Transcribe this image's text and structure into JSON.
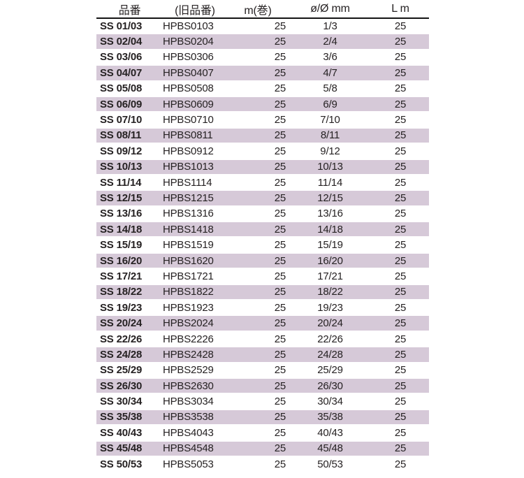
{
  "table": {
    "colors": {
      "shade": "#d6c9d8",
      "text": "#262223",
      "header_rule": "#141414",
      "background": "#ffffff"
    },
    "headers": [
      "品番",
      "(旧品番)",
      "m(巻)",
      "ø/Ø mm",
      "L m"
    ],
    "rows": [
      {
        "part": "SS 01/03",
        "old": "HPBS0103",
        "m": "25",
        "dia": "1/3",
        "l": "25"
      },
      {
        "part": "SS 02/04",
        "old": "HPBS0204",
        "m": "25",
        "dia": "2/4",
        "l": "25"
      },
      {
        "part": "SS 03/06",
        "old": "HPBS0306",
        "m": "25",
        "dia": "3/6",
        "l": "25"
      },
      {
        "part": "SS 04/07",
        "old": "HPBS0407",
        "m": "25",
        "dia": "4/7",
        "l": "25"
      },
      {
        "part": "SS 05/08",
        "old": "HPBS0508",
        "m": "25",
        "dia": "5/8",
        "l": "25"
      },
      {
        "part": "SS 06/09",
        "old": "HPBS0609",
        "m": "25",
        "dia": "6/9",
        "l": "25"
      },
      {
        "part": "SS 07/10",
        "old": "HPBS0710",
        "m": "25",
        "dia": "7/10",
        "l": "25"
      },
      {
        "part": "SS 08/11",
        "old": "HPBS0811",
        "m": "25",
        "dia": "8/11",
        "l": "25"
      },
      {
        "part": "SS 09/12",
        "old": "HPBS0912",
        "m": "25",
        "dia": "9/12",
        "l": "25"
      },
      {
        "part": "SS 10/13",
        "old": "HPBS1013",
        "m": "25",
        "dia": "10/13",
        "l": "25"
      },
      {
        "part": "SS 11/14",
        "old": "HPBS1114",
        "m": "25",
        "dia": "11/14",
        "l": "25"
      },
      {
        "part": "SS 12/15",
        "old": "HPBS1215",
        "m": "25",
        "dia": "12/15",
        "l": "25"
      },
      {
        "part": "SS 13/16",
        "old": "HPBS1316",
        "m": "25",
        "dia": "13/16",
        "l": "25"
      },
      {
        "part": "SS 14/18",
        "old": "HPBS1418",
        "m": "25",
        "dia": "14/18",
        "l": "25"
      },
      {
        "part": "SS 15/19",
        "old": "HPBS1519",
        "m": "25",
        "dia": "15/19",
        "l": "25"
      },
      {
        "part": "SS 16/20",
        "old": "HPBS1620",
        "m": "25",
        "dia": "16/20",
        "l": "25"
      },
      {
        "part": "SS 17/21",
        "old": "HPBS1721",
        "m": "25",
        "dia": "17/21",
        "l": "25"
      },
      {
        "part": "SS 18/22",
        "old": "HPBS1822",
        "m": "25",
        "dia": "18/22",
        "l": "25"
      },
      {
        "part": "SS 19/23",
        "old": "HPBS1923",
        "m": "25",
        "dia": "19/23",
        "l": "25"
      },
      {
        "part": "SS 20/24",
        "old": "HPBS2024",
        "m": "25",
        "dia": "20/24",
        "l": "25"
      },
      {
        "part": "SS 22/26",
        "old": "HPBS2226",
        "m": "25",
        "dia": "22/26",
        "l": "25"
      },
      {
        "part": "SS 24/28",
        "old": "HPBS2428",
        "m": "25",
        "dia": "24/28",
        "l": "25"
      },
      {
        "part": "SS 25/29",
        "old": "HPBS2529",
        "m": "25",
        "dia": "25/29",
        "l": "25"
      },
      {
        "part": "SS 26/30",
        "old": "HPBS2630",
        "m": "25",
        "dia": "26/30",
        "l": "25"
      },
      {
        "part": "SS 30/34",
        "old": "HPBS3034",
        "m": "25",
        "dia": "30/34",
        "l": "25"
      },
      {
        "part": "SS 35/38",
        "old": "HPBS3538",
        "m": "25",
        "dia": "35/38",
        "l": "25"
      },
      {
        "part": "SS 40/43",
        "old": "HPBS4043",
        "m": "25",
        "dia": "40/43",
        "l": "25"
      },
      {
        "part": "SS 45/48",
        "old": "HPBS4548",
        "m": "25",
        "dia": "45/48",
        "l": "25"
      },
      {
        "part": "SS 50/53",
        "old": "HPBS5053",
        "m": "25",
        "dia": "50/53",
        "l": "25"
      }
    ]
  }
}
